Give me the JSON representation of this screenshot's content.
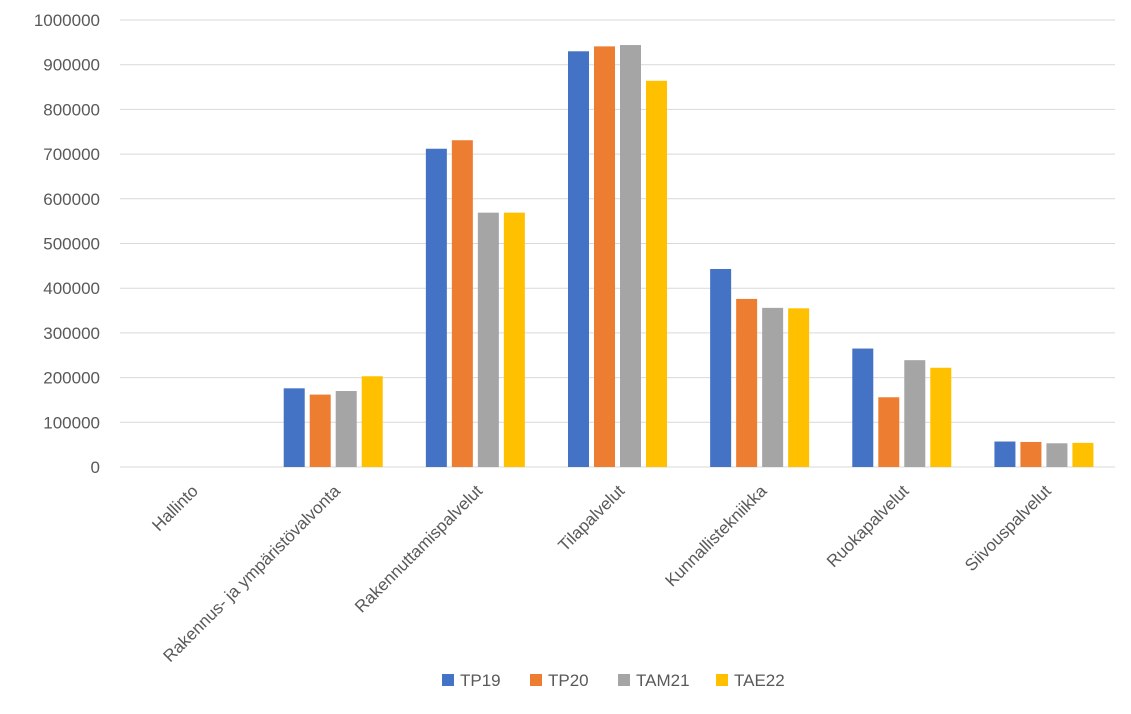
{
  "chart_data": {
    "type": "bar",
    "title": "",
    "xlabel": "",
    "ylabel": "",
    "ylim": [
      0,
      1000000
    ],
    "yticks": [
      "0",
      "100000",
      "200000",
      "300000",
      "400000",
      "500000",
      "600000",
      "700000",
      "800000",
      "900000",
      "1000000"
    ],
    "grid": true,
    "legend_position": "bottom",
    "categories": [
      "Hallinto",
      "Rakennus- ja ympäristövalvonta",
      "Rakennuttamispalvelut",
      "Tilapalvelut",
      "Kunnallistekniikka",
      "Ruokapalvelut",
      "Siivouspalvelut"
    ],
    "series": [
      {
        "name": "TP19",
        "color": "#4472C4",
        "values": [
          0,
          176000,
          712000,
          930000,
          443000,
          265000,
          57000
        ]
      },
      {
        "name": "TP20",
        "color": "#ED7D31",
        "values": [
          0,
          162000,
          731000,
          941000,
          376000,
          156000,
          56000
        ]
      },
      {
        "name": "TAM21",
        "color": "#A5A5A5",
        "values": [
          0,
          170000,
          569000,
          944000,
          356000,
          239000,
          53000
        ]
      },
      {
        "name": "TAE22",
        "color": "#FFC000",
        "values": [
          0,
          203000,
          569000,
          864000,
          355000,
          222000,
          54000
        ]
      }
    ]
  }
}
